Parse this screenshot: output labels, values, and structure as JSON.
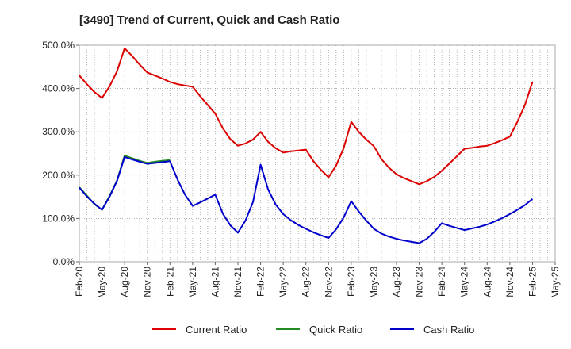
{
  "chart_data": {
    "type": "line",
    "title": "[3490]  Trend of Current, Quick and Cash Ratio",
    "xlabel": "",
    "ylabel": "",
    "ylim": [
      0,
      500
    ],
    "y_ticks": [
      0,
      100,
      200,
      300,
      400,
      500
    ],
    "y_tick_labels": [
      "0.0%",
      "100.0%",
      "200.0%",
      "300.0%",
      "400.0%",
      "500.0%"
    ],
    "x_tick_labels": [
      "Feb-20",
      "May-20",
      "Aug-20",
      "Nov-20",
      "Feb-21",
      "May-21",
      "Aug-21",
      "Nov-21",
      "Feb-22",
      "May-22",
      "Aug-22",
      "Nov-22",
      "Feb-23",
      "May-23",
      "Aug-23",
      "Nov-23",
      "Feb-24",
      "May-24",
      "Aug-24",
      "Nov-24",
      "Feb-25",
      "May-25"
    ],
    "x_range_months": [
      0,
      63
    ],
    "grid": true,
    "legend_position": "bottom",
    "series": [
      {
        "name": "Current Ratio",
        "color": "#dd0000",
        "points": [
          [
            0,
            430
          ],
          [
            1,
            410
          ],
          [
            2,
            392
          ],
          [
            3,
            378
          ],
          [
            4,
            405
          ],
          [
            5,
            440
          ],
          [
            6,
            493
          ],
          [
            7,
            475
          ],
          [
            8,
            455
          ],
          [
            9,
            437
          ],
          [
            10,
            430
          ],
          [
            11,
            423
          ],
          [
            12,
            415
          ],
          [
            13,
            410
          ],
          [
            14,
            407
          ],
          [
            15,
            404
          ],
          [
            16,
            382
          ],
          [
            17,
            362
          ],
          [
            18,
            342
          ],
          [
            19,
            308
          ],
          [
            20,
            283
          ],
          [
            21,
            268
          ],
          [
            22,
            273
          ],
          [
            23,
            282
          ],
          [
            24,
            300
          ],
          [
            25,
            277
          ],
          [
            26,
            262
          ],
          [
            27,
            252
          ],
          [
            28,
            255
          ],
          [
            29,
            257
          ],
          [
            30,
            259
          ],
          [
            31,
            232
          ],
          [
            32,
            212
          ],
          [
            33,
            195
          ],
          [
            34,
            222
          ],
          [
            35,
            262
          ],
          [
            36,
            323
          ],
          [
            37,
            300
          ],
          [
            38,
            282
          ],
          [
            39,
            267
          ],
          [
            40,
            237
          ],
          [
            41,
            217
          ],
          [
            42,
            202
          ],
          [
            43,
            193
          ],
          [
            44,
            186
          ],
          [
            45,
            179
          ],
          [
            46,
            186
          ],
          [
            47,
            196
          ],
          [
            48,
            210
          ],
          [
            49,
            227
          ],
          [
            50,
            244
          ],
          [
            51,
            261
          ],
          [
            52,
            263
          ],
          [
            53,
            266
          ],
          [
            54,
            268
          ],
          [
            55,
            274
          ],
          [
            56,
            281
          ],
          [
            57,
            289
          ],
          [
            58,
            323
          ],
          [
            59,
            362
          ],
          [
            60,
            415
          ]
        ]
      },
      {
        "name": "Quick Ratio",
        "color": "#228b22",
        "points": [
          [
            0,
            172
          ],
          [
            1,
            153
          ],
          [
            2,
            133
          ],
          [
            3,
            120
          ],
          [
            4,
            152
          ],
          [
            5,
            188
          ],
          [
            6,
            245
          ],
          [
            7,
            239
          ],
          [
            8,
            233
          ],
          [
            9,
            228
          ],
          [
            10,
            231
          ],
          [
            11,
            233
          ],
          [
            12,
            235
          ]
        ]
      },
      {
        "name": "Cash Ratio",
        "color": "#0000cc",
        "points": [
          [
            0,
            171
          ],
          [
            1,
            151
          ],
          [
            2,
            134
          ],
          [
            3,
            120
          ],
          [
            4,
            150
          ],
          [
            5,
            187
          ],
          [
            6,
            242
          ],
          [
            7,
            236
          ],
          [
            8,
            231
          ],
          [
            9,
            226
          ],
          [
            10,
            228
          ],
          [
            11,
            230
          ],
          [
            12,
            232
          ],
          [
            13,
            190
          ],
          [
            14,
            155
          ],
          [
            15,
            129
          ],
          [
            16,
            137
          ],
          [
            17,
            146
          ],
          [
            18,
            155
          ],
          [
            19,
            111
          ],
          [
            20,
            84
          ],
          [
            21,
            67
          ],
          [
            22,
            95
          ],
          [
            23,
            138
          ],
          [
            24,
            224
          ],
          [
            25,
            167
          ],
          [
            26,
            132
          ],
          [
            27,
            110
          ],
          [
            28,
            96
          ],
          [
            29,
            85
          ],
          [
            30,
            76
          ],
          [
            31,
            68
          ],
          [
            32,
            61
          ],
          [
            33,
            55
          ],
          [
            34,
            75
          ],
          [
            35,
            102
          ],
          [
            36,
            140
          ],
          [
            37,
            116
          ],
          [
            38,
            95
          ],
          [
            39,
            76
          ],
          [
            40,
            65
          ],
          [
            41,
            58
          ],
          [
            42,
            53
          ],
          [
            43,
            49
          ],
          [
            44,
            46
          ],
          [
            45,
            43
          ],
          [
            46,
            53
          ],
          [
            47,
            69
          ],
          [
            48,
            89
          ],
          [
            49,
            83
          ],
          [
            50,
            78
          ],
          [
            51,
            73
          ],
          [
            52,
            77
          ],
          [
            53,
            81
          ],
          [
            54,
            86
          ],
          [
            55,
            93
          ],
          [
            56,
            101
          ],
          [
            57,
            110
          ],
          [
            58,
            120
          ],
          [
            59,
            131
          ],
          [
            60,
            145
          ]
        ]
      }
    ]
  }
}
